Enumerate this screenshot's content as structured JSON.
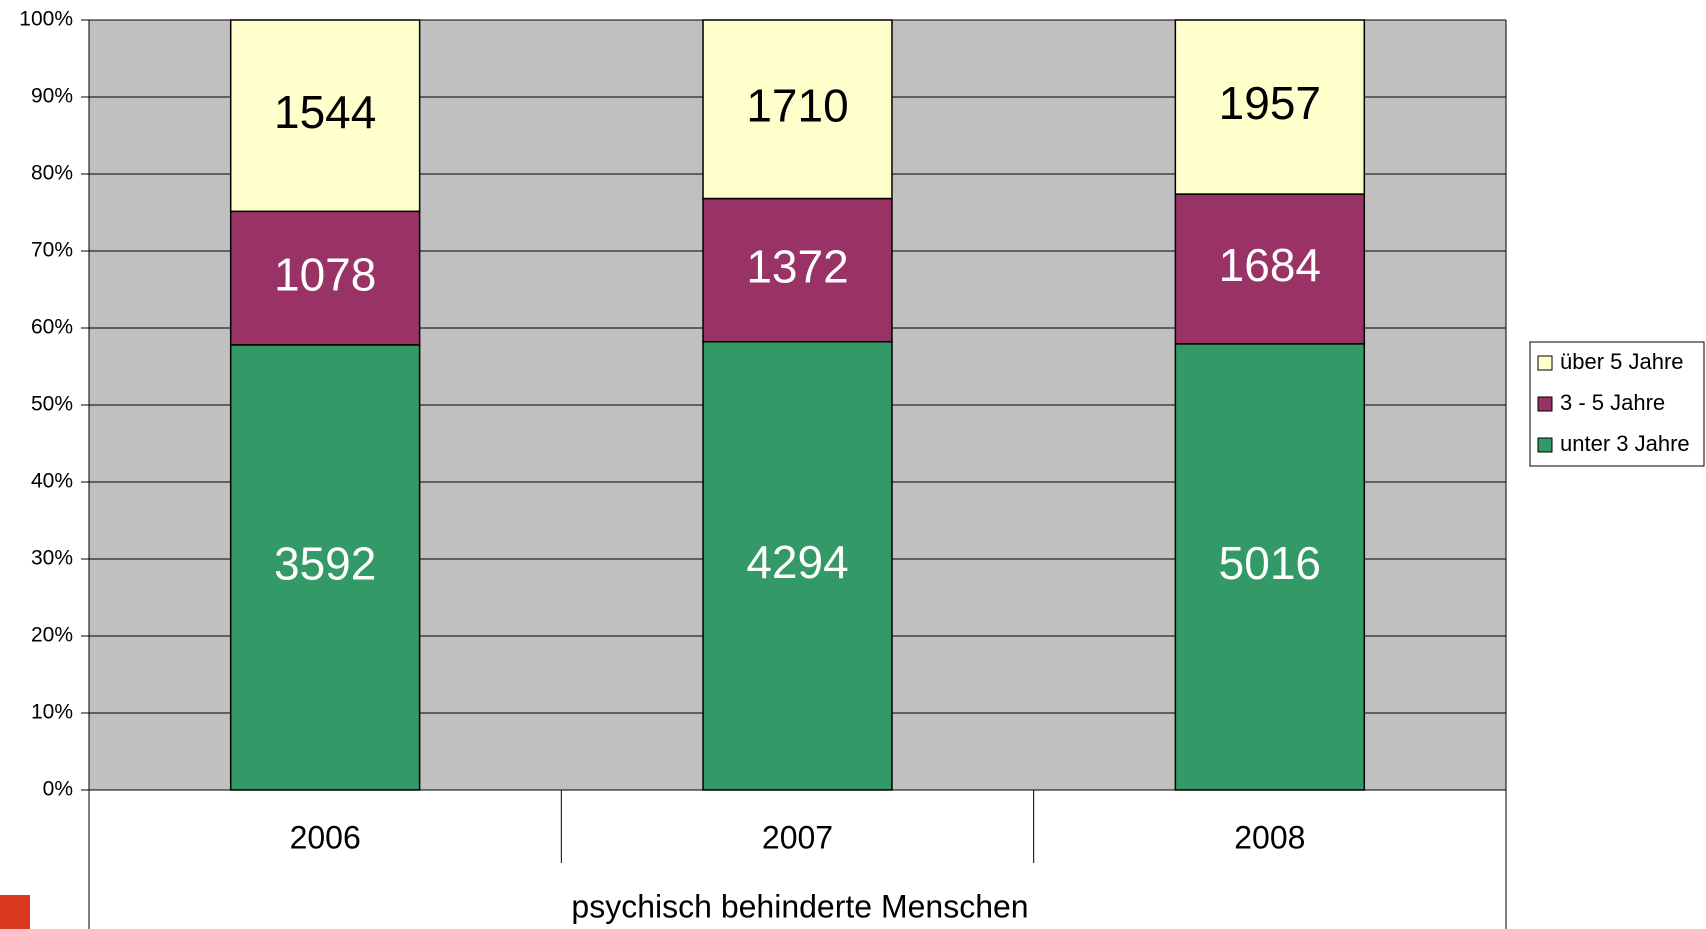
{
  "chart_data": {
    "type": "bar",
    "stacking": "percent",
    "x_label": "psychisch behinderte Menschen",
    "categories": [
      "2006",
      "2007",
      "2008"
    ],
    "series": [
      {
        "name": "unter 3 Jahre",
        "color": "#339966",
        "label_color": "#ffffff",
        "values": [
          3592,
          4294,
          5016
        ]
      },
      {
        "name": "3 - 5 Jahre",
        "color": "#993366",
        "label_color": "#ffffff",
        "values": [
          1078,
          1372,
          1684
        ]
      },
      {
        "name": "über 5 Jahre",
        "color": "#ffffcc",
        "label_color": "#000000",
        "values": [
          1544,
          1710,
          1957
        ]
      }
    ],
    "ylim": [
      0,
      100
    ],
    "yticks": [
      {
        "value": 0,
        "label": "0%"
      },
      {
        "value": 10,
        "label": "10%"
      },
      {
        "value": 20,
        "label": "20%"
      },
      {
        "value": 30,
        "label": "30%"
      },
      {
        "value": 40,
        "label": "40%"
      },
      {
        "value": 50,
        "label": "50%"
      },
      {
        "value": 60,
        "label": "60%"
      },
      {
        "value": 70,
        "label": "70%"
      },
      {
        "value": 80,
        "label": "80%"
      },
      {
        "value": 90,
        "label": "90%"
      },
      {
        "value": 100,
        "label": "100%"
      }
    ],
    "grid": true,
    "plot_background": "#c0c0c0",
    "legend": "right"
  }
}
